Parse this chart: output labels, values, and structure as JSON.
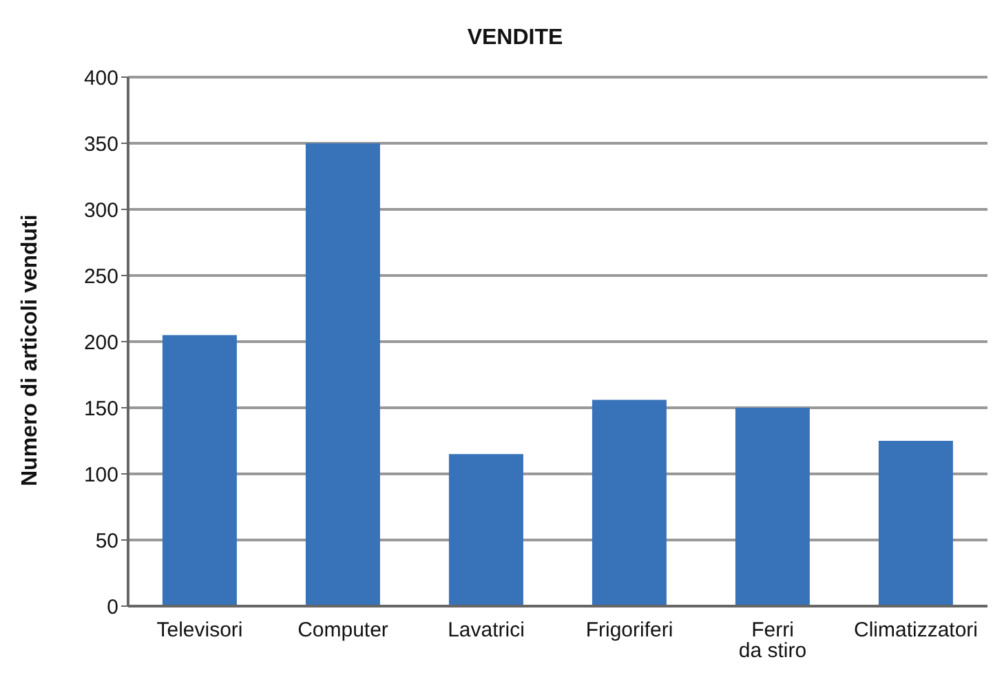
{
  "chart_data": {
    "type": "bar",
    "title": "VENDITE",
    "ylabel": "Numero di articoli venduti",
    "categories": [
      "Televisori",
      "Computer",
      "Lavatrici",
      "Frigoriferi",
      "Ferri da stiro",
      "Climatizzatori"
    ],
    "values": [
      205,
      350,
      115,
      156,
      150,
      125
    ],
    "color": "#3873b9",
    "ylim": [
      0,
      400
    ],
    "yticks": [
      0,
      50,
      100,
      150,
      200,
      250,
      300,
      350,
      400
    ],
    "grid": "y",
    "legend": false
  }
}
